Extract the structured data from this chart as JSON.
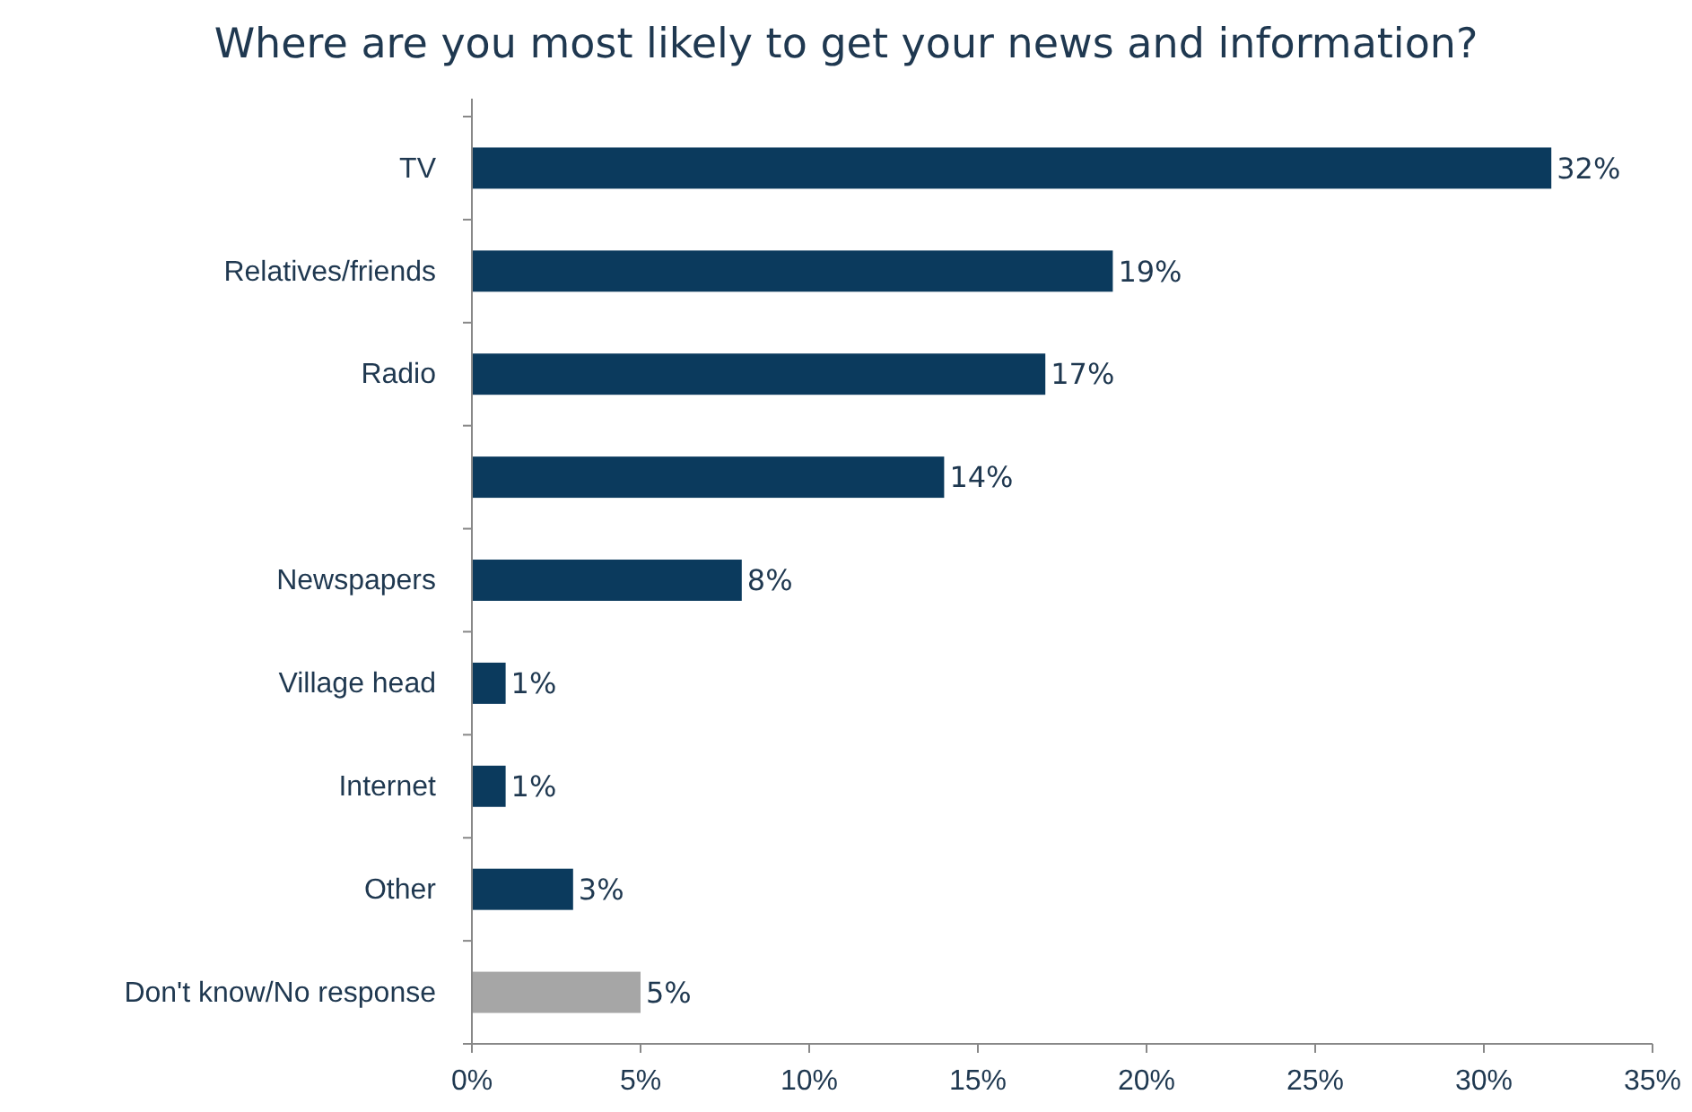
{
  "chart_data": {
    "type": "bar",
    "orientation": "horizontal",
    "title": "Where are you most likely to get your news and information?",
    "categories": [
      "TV",
      "Relatives/friends",
      "Radio",
      null,
      "Newspapers",
      "Village head",
      "Internet",
      "Other",
      "Don't know/No response"
    ],
    "values": [
      32,
      19,
      17,
      14,
      8,
      1,
      1,
      3,
      5
    ],
    "colors": [
      "#0b3a5d",
      "#0b3a5d",
      "#0b3a5d",
      "#0b3a5d",
      "#0b3a5d",
      "#0b3a5d",
      "#0b3a5d",
      "#0b3a5d",
      "#a6a6a6"
    ],
    "value_labels": [
      "32%",
      "19%",
      "17%",
      "14%",
      "8%",
      "1%",
      "1%",
      "3%",
      "5%"
    ],
    "xlim": [
      0,
      35
    ],
    "xticks": [
      {
        "value": 0,
        "label": "0%"
      },
      {
        "value": 5,
        "label": "5%"
      },
      {
        "value": 10,
        "label": "10%"
      },
      {
        "value": 15,
        "label": "15%"
      },
      {
        "value": 20,
        "label": "20%"
      },
      {
        "value": 25,
        "label": "25%"
      },
      {
        "value": 30,
        "label": "30%"
      },
      {
        "value": 35,
        "label": "35%"
      }
    ],
    "grid": false
  }
}
